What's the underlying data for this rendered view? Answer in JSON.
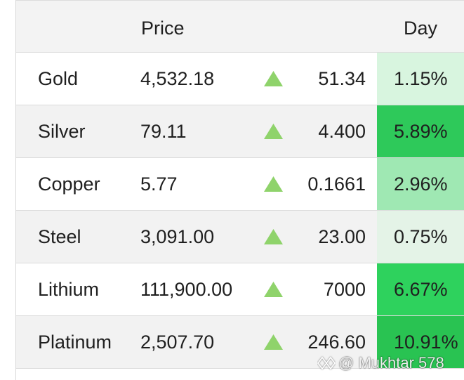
{
  "header": {
    "price_label": "Price",
    "day_label": "Day"
  },
  "rows": [
    {
      "name": "Gold",
      "price": "4,532.18",
      "change": "51.34",
      "pct": "1.15%",
      "pct_color": "#d8f5df"
    },
    {
      "name": "Silver",
      "price": "79.11",
      "change": "4.400",
      "pct": "5.89%",
      "pct_color": "#2ec95a"
    },
    {
      "name": "Copper",
      "price": "5.77",
      "change": "0.1661",
      "pct": "2.96%",
      "pct_color": "#9fe8b3"
    },
    {
      "name": "Steel",
      "price": "3,091.00",
      "change": "23.00",
      "pct": "0.75%",
      "pct_color": "#e4f3e7"
    },
    {
      "name": "Lithium",
      "price": "111,900.00",
      "change": "7000",
      "pct": "6.67%",
      "pct_color": "#2ed25d"
    },
    {
      "name": "Platinum",
      "price": "2,507.70",
      "change": "246.60",
      "pct": "10.91%",
      "pct_color": "#29c352"
    }
  ],
  "arrow_icon": "triangle-up-icon",
  "arrow_color": "#8fd36b",
  "watermark": {
    "text": "@ Mukhtar 578",
    "icon": "diamond-logo-icon"
  }
}
